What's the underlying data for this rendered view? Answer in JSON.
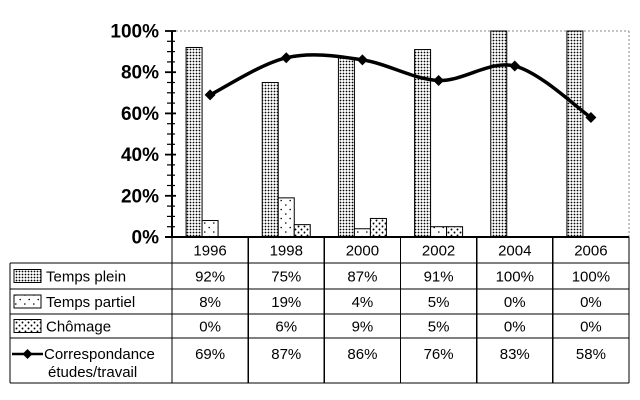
{
  "colors": {
    "ink": "#000000",
    "grid": "#888888",
    "background": "#ffffff"
  },
  "chart_data": {
    "type": "bar",
    "subtype": "combo-bar-line",
    "title": "",
    "xlabel": "",
    "ylabel": "",
    "categories": [
      "1996",
      "1998",
      "2000",
      "2002",
      "2004",
      "2006"
    ],
    "series": [
      {
        "name": "Temps plein",
        "chart": "bar",
        "pattern": "dense-dots",
        "values": [
          92,
          75,
          87,
          91,
          100,
          100
        ]
      },
      {
        "name": "Temps partiel",
        "chart": "bar",
        "pattern": "sparse-dots",
        "values": [
          8,
          19,
          4,
          5,
          0,
          0
        ]
      },
      {
        "name": "Chômage",
        "chart": "bar",
        "pattern": "medium-dots",
        "values": [
          0,
          6,
          9,
          5,
          0,
          0
        ]
      },
      {
        "name": "Correspondance études/travail",
        "chart": "line",
        "marker": "diamond",
        "smooth": true,
        "values": [
          69,
          87,
          86,
          76,
          83,
          58
        ]
      }
    ],
    "ylim": [
      0,
      100
    ],
    "y_major_step": 20,
    "y_minor_step": 5,
    "y_tick_labels": [
      "0%",
      "20%",
      "40%",
      "60%",
      "80%",
      "100%"
    ],
    "gridline_at": [
      100
    ],
    "grid": "top-line-only",
    "legend_position": "table-left",
    "value_suffix": "%"
  },
  "table": {
    "row_labels": [
      {
        "lines": [
          "Temps plein"
        ],
        "swatch": "dense-dots"
      },
      {
        "lines": [
          "Temps partiel"
        ],
        "swatch": "sparse-dots"
      },
      {
        "lines": [
          "Chômage"
        ],
        "swatch": "medium-dots"
      },
      {
        "lines": [
          "Correspondance",
          "études/travail"
        ],
        "swatch": "line-diamond"
      }
    ],
    "values": [
      [
        "92%",
        "75%",
        "87%",
        "91%",
        "100%",
        "100%"
      ],
      [
        "8%",
        "19%",
        "4%",
        "5%",
        "0%",
        "0%"
      ],
      [
        "0%",
        "6%",
        "9%",
        "5%",
        "0%",
        "0%"
      ],
      [
        "69%",
        "87%",
        "86%",
        "76%",
        "83%",
        "58%"
      ]
    ]
  }
}
